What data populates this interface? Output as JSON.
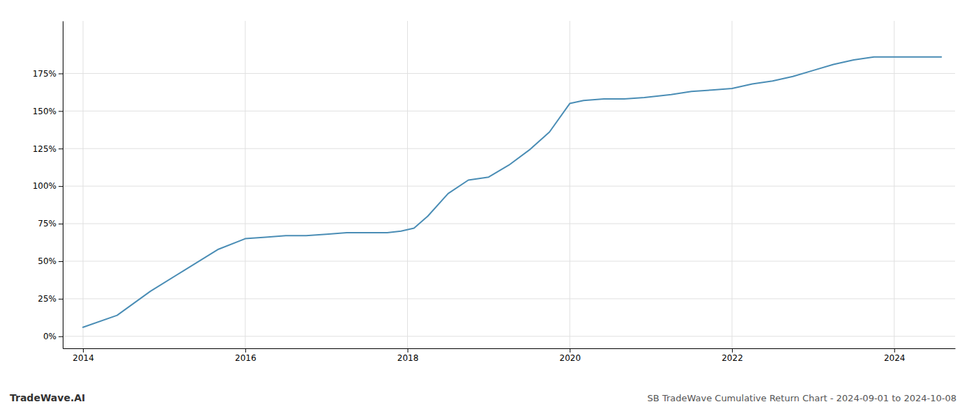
{
  "chart_data": {
    "type": "line",
    "title": "SB TradeWave Cumulative Return Chart - 2024-09-01 to 2024-10-08",
    "annotations": [
      "TradeWave.AI"
    ],
    "x": [
      2014.0,
      2014.42,
      2014.83,
      2015.25,
      2015.67,
      2016.0,
      2016.25,
      2016.5,
      2016.75,
      2017.0,
      2017.25,
      2017.5,
      2017.75,
      2017.92,
      2018.08,
      2018.25,
      2018.5,
      2018.75,
      2019.0,
      2019.25,
      2019.5,
      2019.75,
      2020.0,
      2020.17,
      2020.42,
      2020.67,
      2020.92,
      2021.25,
      2021.5,
      2021.75,
      2022.0,
      2022.25,
      2022.5,
      2022.75,
      2023.0,
      2023.25,
      2023.5,
      2023.75,
      2024.0,
      2024.25,
      2024.58
    ],
    "values": [
      6,
      14,
      30,
      44,
      58,
      65,
      66,
      67,
      67,
      68,
      69,
      69,
      69,
      70,
      72,
      80,
      95,
      104,
      106,
      114,
      124,
      136,
      155,
      157,
      158,
      158,
      159,
      161,
      163,
      164,
      165,
      168,
      170,
      173,
      177,
      181,
      184,
      186,
      186,
      186,
      186
    ],
    "color": "#4a8db5",
    "xlim": [
      2013.75,
      2024.75
    ],
    "ylim": [
      -8,
      210
    ],
    "xticks": [
      2014,
      2016,
      2018,
      2020,
      2022,
      2024
    ],
    "yticks": [
      {
        "value": 0,
        "label": "0%"
      },
      {
        "value": 25,
        "label": "25%"
      },
      {
        "value": 50,
        "label": "50%"
      },
      {
        "value": 75,
        "label": "75%"
      },
      {
        "value": 100,
        "label": "100%"
      },
      {
        "value": 125,
        "label": "125%"
      },
      {
        "value": 150,
        "label": "150%"
      },
      {
        "value": 175,
        "label": "175%"
      }
    ],
    "grid": true
  }
}
